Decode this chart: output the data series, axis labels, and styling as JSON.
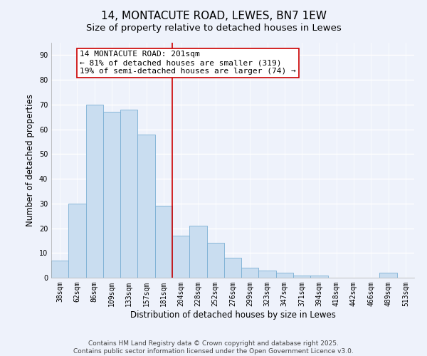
{
  "title": "14, MONTACUTE ROAD, LEWES, BN7 1EW",
  "subtitle": "Size of property relative to detached houses in Lewes",
  "xlabel": "Distribution of detached houses by size in Lewes",
  "ylabel": "Number of detached properties",
  "categories": [
    "38sqm",
    "62sqm",
    "86sqm",
    "109sqm",
    "133sqm",
    "157sqm",
    "181sqm",
    "204sqm",
    "228sqm",
    "252sqm",
    "276sqm",
    "299sqm",
    "323sqm",
    "347sqm",
    "371sqm",
    "394sqm",
    "418sqm",
    "442sqm",
    "466sqm",
    "489sqm",
    "513sqm"
  ],
  "values": [
    7,
    30,
    70,
    67,
    68,
    58,
    29,
    17,
    21,
    14,
    8,
    4,
    3,
    2,
    1,
    1,
    0,
    0,
    0,
    2,
    0
  ],
  "bar_color": "#c9ddf0",
  "bar_edge_color": "#7bafd4",
  "vline_x_index": 7,
  "vline_color": "#cc0000",
  "annotation_line1": "14 MONTACUTE ROAD: 201sqm",
  "annotation_line2": "← 81% of detached houses are smaller (319)",
  "annotation_line3": "19% of semi-detached houses are larger (74) →",
  "annotation_box_color": "#ffffff",
  "annotation_box_edge": "#cc0000",
  "ylim": [
    0,
    95
  ],
  "yticks": [
    0,
    10,
    20,
    30,
    40,
    50,
    60,
    70,
    80,
    90
  ],
  "footer_line1": "Contains HM Land Registry data © Crown copyright and database right 2025.",
  "footer_line2": "Contains public sector information licensed under the Open Government Licence v3.0.",
  "bg_color": "#eef2fb",
  "grid_color": "#ffffff",
  "plot_bg_color": "#eef2fb",
  "title_fontsize": 11,
  "subtitle_fontsize": 9.5,
  "axis_label_fontsize": 8.5,
  "tick_fontsize": 7,
  "annotation_fontsize": 8,
  "footer_fontsize": 6.5
}
